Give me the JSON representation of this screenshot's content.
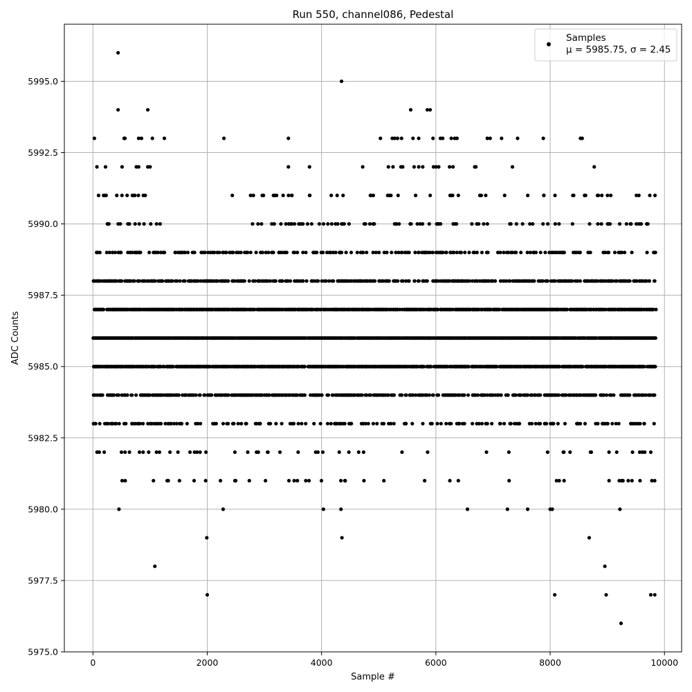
{
  "chart_data": {
    "type": "scatter",
    "title": "Run 550, channel086, Pedestal",
    "xlabel": "Sample #",
    "ylabel": "ADC Counts",
    "xlim": [
      -500,
      10300
    ],
    "ylim": [
      5975.0,
      5997.0
    ],
    "x_ticks": [
      0,
      2000,
      4000,
      6000,
      8000,
      10000
    ],
    "x_tick_labels": [
      "0",
      "2000",
      "4000",
      "6000",
      "8000",
      "10000"
    ],
    "y_ticks": [
      5975.0,
      5977.5,
      5980.0,
      5982.5,
      5985.0,
      5987.5,
      5990.0,
      5992.5,
      5995.0
    ],
    "y_tick_labels": [
      "5975.0",
      "5977.5",
      "5980.0",
      "5982.5",
      "5985.0",
      "5987.5",
      "5990.0",
      "5992.5",
      "5995.0"
    ],
    "grid": true,
    "legend": {
      "position": "top-right",
      "label": "Samples",
      "stats": "μ = 5985.75, σ = 2.45",
      "color": "#000000"
    },
    "series": [
      {
        "name": "Samples",
        "color": "#000000",
        "band_levels": {
          "levels": [
            5976,
            5977,
            5978,
            5979,
            5980,
            5981,
            5982,
            5983,
            5984,
            5985,
            5986,
            5987,
            5988,
            5989,
            5990,
            5991,
            5992,
            5993
          ],
          "x_max": 9850,
          "densities": [
            0.0,
            0.0,
            0.003,
            0.006,
            0.012,
            0.06,
            0.12,
            0.25,
            0.55,
            0.85,
            0.95,
            0.85,
            0.55,
            0.3,
            0.15,
            0.08,
            0.015,
            0.008
          ]
        },
        "points": [
          {
            "x": 440,
            "y": 5996
          },
          {
            "x": 4350,
            "y": 5995
          },
          {
            "x": 440,
            "y": 5994
          },
          {
            "x": 960,
            "y": 5994
          },
          {
            "x": 5560,
            "y": 5994
          },
          {
            "x": 5850,
            "y": 5994
          },
          {
            "x": 5900,
            "y": 5994
          },
          {
            "x": 560,
            "y": 5993
          },
          {
            "x": 800,
            "y": 5993
          },
          {
            "x": 850,
            "y": 5993
          },
          {
            "x": 1040,
            "y": 5993
          },
          {
            "x": 1250,
            "y": 5993
          },
          {
            "x": 3420,
            "y": 5993
          },
          {
            "x": 5030,
            "y": 5993
          },
          {
            "x": 5280,
            "y": 5993
          },
          {
            "x": 5330,
            "y": 5993
          },
          {
            "x": 5400,
            "y": 5993
          },
          {
            "x": 5600,
            "y": 5993
          },
          {
            "x": 5700,
            "y": 5993
          },
          {
            "x": 5950,
            "y": 5993
          },
          {
            "x": 6080,
            "y": 5993
          },
          {
            "x": 6120,
            "y": 5993
          },
          {
            "x": 6270,
            "y": 5993
          },
          {
            "x": 6330,
            "y": 5993
          },
          {
            "x": 6370,
            "y": 5993
          },
          {
            "x": 6900,
            "y": 5993
          },
          {
            "x": 6950,
            "y": 5993
          },
          {
            "x": 7150,
            "y": 5993
          },
          {
            "x": 7430,
            "y": 5993
          },
          {
            "x": 7880,
            "y": 5993
          },
          {
            "x": 8530,
            "y": 5993
          },
          {
            "x": 8560,
            "y": 5993
          },
          {
            "x": 70,
            "y": 5992
          },
          {
            "x": 220,
            "y": 5992
          },
          {
            "x": 510,
            "y": 5992
          },
          {
            "x": 760,
            "y": 5992
          },
          {
            "x": 800,
            "y": 5992
          },
          {
            "x": 960,
            "y": 5992
          },
          {
            "x": 1000,
            "y": 5992
          },
          {
            "x": 3420,
            "y": 5992
          },
          {
            "x": 4720,
            "y": 5992
          },
          {
            "x": 5170,
            "y": 5992
          },
          {
            "x": 5250,
            "y": 5992
          },
          {
            "x": 5420,
            "y": 5992
          },
          {
            "x": 5620,
            "y": 5992
          },
          {
            "x": 5700,
            "y": 5992
          },
          {
            "x": 5770,
            "y": 5992
          },
          {
            "x": 5960,
            "y": 5992
          },
          {
            "x": 6050,
            "y": 5992
          },
          {
            "x": 6240,
            "y": 5992
          },
          {
            "x": 6300,
            "y": 5992
          },
          {
            "x": 6680,
            "y": 5992
          },
          {
            "x": 6700,
            "y": 5992
          },
          {
            "x": 7340,
            "y": 5992
          },
          {
            "x": 2000,
            "y": 5977
          },
          {
            "x": 8080,
            "y": 5977
          },
          {
            "x": 8980,
            "y": 5977
          },
          {
            "x": 9760,
            "y": 5977
          },
          {
            "x": 9830,
            "y": 5977
          },
          {
            "x": 9240,
            "y": 5976
          }
        ]
      }
    ]
  }
}
